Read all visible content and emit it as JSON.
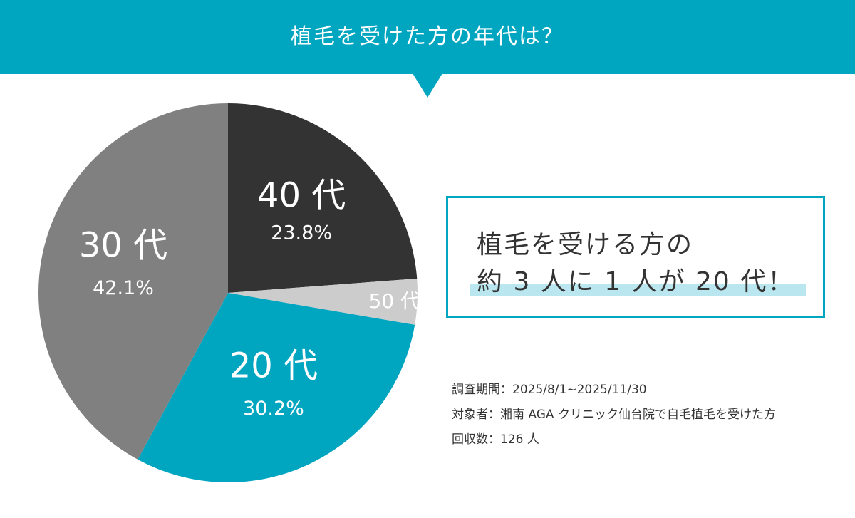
{
  "header": {
    "title": "植毛を受けた方の年代は？"
  },
  "chart_data": {
    "type": "pie",
    "slices": [
      {
        "label": "40 代",
        "value": 23.8,
        "value_label": "23.8%",
        "color": "#333333"
      },
      {
        "label": "50 代",
        "value": 3.9,
        "value_label": "",
        "color": "#cccccc"
      },
      {
        "label": "20 代",
        "value": 30.2,
        "value_label": "30.2%",
        "color": "#00a5c0"
      },
      {
        "label": "30 代",
        "value": 42.1,
        "value_label": "42.1%",
        "color": "#808080"
      }
    ]
  },
  "callout": {
    "line1": "植毛を受ける方の",
    "line2": "約 3 人に 1 人が 20 代！"
  },
  "survey": {
    "period": "調査期間：2025/8/1~2025/11/30",
    "target": "対象者：湘南 AGA クリニック仙台院で自毛植毛を受けた方",
    "responses": "回収数：126 人"
  }
}
